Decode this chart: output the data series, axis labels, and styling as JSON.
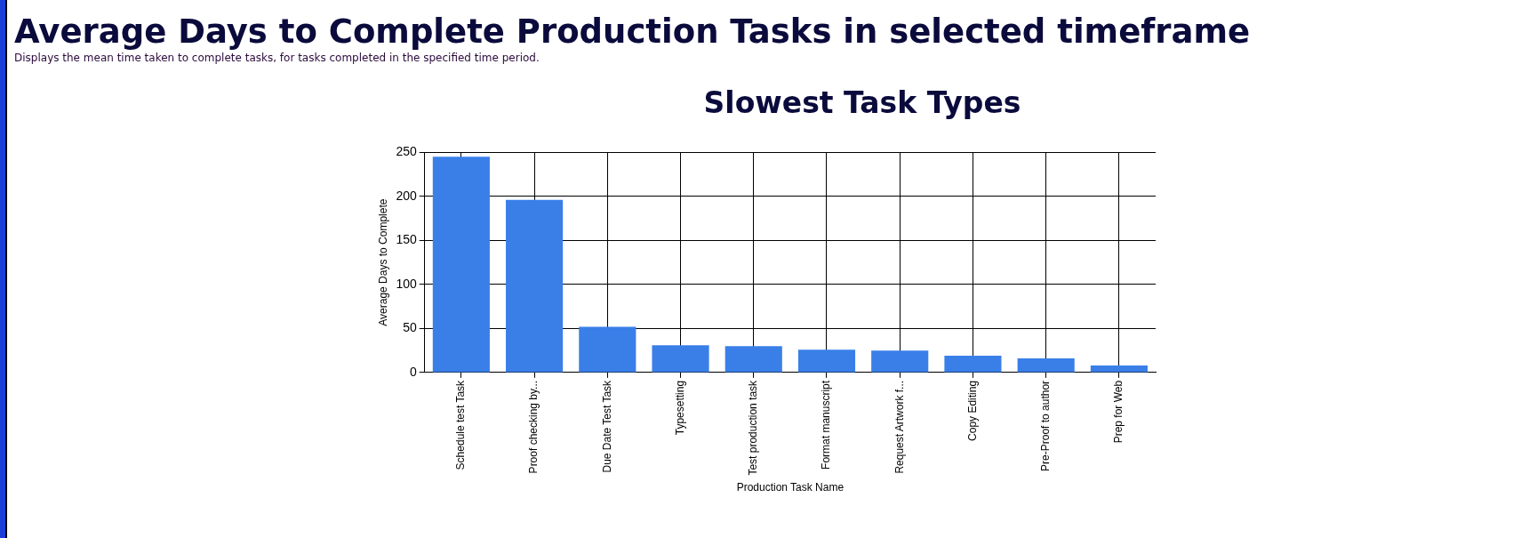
{
  "chart_data": {
    "type": "bar",
    "title": "Average Days to Complete Production Tasks in selected timeframe",
    "subtitle": "Displays the mean time taken to complete tasks, for tasks completed in the specified time period.",
    "annotations": [
      "Slowest Task Types"
    ],
    "xlabel": "Production Task Name",
    "ylabel": "Average Days to Complete",
    "categories": [
      "Schedule test Task",
      "Proof checking by...",
      "Due Date Test Task",
      "Typesetting",
      "Test production task",
      "Format manuscript",
      "Request Artwork f...",
      "Copy Editing",
      "Pre-Proof to author",
      "Prep for Web"
    ],
    "values": [
      245,
      196,
      52,
      31,
      30,
      26,
      25,
      19,
      16,
      8
    ],
    "color": "#3a7fe8",
    "ylim": [
      0,
      250
    ],
    "yticks": [
      0,
      50,
      100,
      150,
      200,
      250
    ],
    "grid": true,
    "legend": false
  }
}
